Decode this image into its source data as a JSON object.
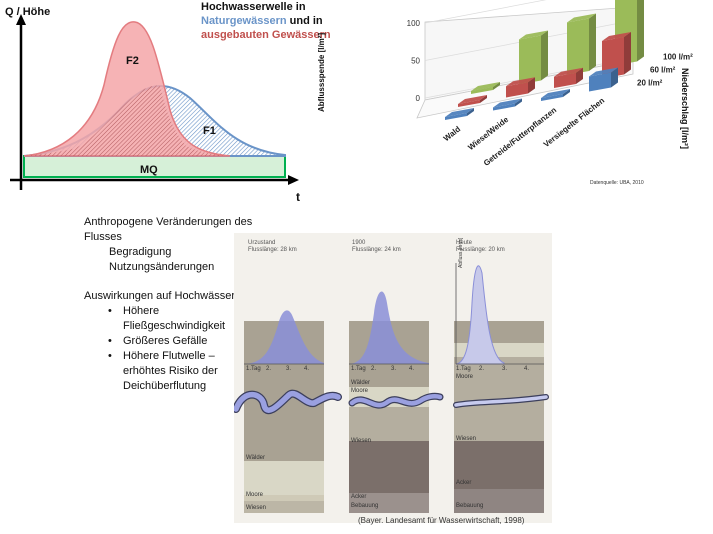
{
  "hydrograph": {
    "ylabel": "Q / Höhe",
    "xlabel": "t",
    "curve_f2": "F2",
    "curve_f1": "F1",
    "baseline": "MQ",
    "title_line1": "Hochwasserwelle in",
    "title_line2_a": "Naturgewässern",
    "title_line2_b": " und in",
    "title_line3": "ausgebauten Gewässern",
    "colors": {
      "natural": "#6a94c8",
      "built": "#c0504d",
      "baseline": "#00b050"
    }
  },
  "chart_data": {
    "type": "bar",
    "categories": [
      "Wald",
      "Wiese/Weide",
      "Getreide/Futterpflanzen",
      "Versiegelte Flächen"
    ],
    "series": [
      {
        "name": "20 l/m²",
        "values": [
          0,
          0,
          0,
          20
        ]
      },
      {
        "name": "60 l/m²",
        "values": [
          0,
          15,
          15,
          50
        ]
      },
      {
        "name": "100 l/m²",
        "values": [
          0,
          60,
          70,
          100
        ]
      }
    ],
    "ylabel": "Abflussspende [l/m²]",
    "depth_label": "Niederschlag [l/m²]",
    "yticks": [
      "0",
      "50",
      "100"
    ],
    "ylim": [
      0,
      100
    ],
    "source": "Datenquelle: UBA, 2010",
    "colors": {
      "20 l/m²": "#4f81bd",
      "60 l/m²": "#c0504d",
      "100 l/m²": "#9bbb59"
    }
  },
  "text_block": {
    "heading1": "Anthropogene Veränderungen des",
    "heading2": "Flusses",
    "changes": [
      "Begradigung",
      "Nutzungsänderungen"
    ],
    "effects_heading": "Auswirkungen auf Hochwässer",
    "effects": [
      [
        "Höhere",
        "Fließgeschwindigkeit"
      ],
      [
        "Größeres Gefälle"
      ],
      [
        "Höhere Flutwelle –",
        "erhöhtes Risiko der",
        "Deichüberflutung"
      ]
    ]
  },
  "panels": [
    {
      "state": "Urzustand",
      "length": "Flusslänge: 28 km",
      "days": [
        "1.Tag",
        "2.",
        "3.",
        "4."
      ],
      "labels": [
        "Wälder",
        "Moore",
        "Wiesen"
      ]
    },
    {
      "state": "1900",
      "length": "Flusslänge: 24 km",
      "days": [
        "1.Tag",
        "2.",
        "3.",
        "4."
      ],
      "labels": [
        "Wälder",
        "Moore",
        "Wiesen",
        "Acker",
        "Bebauung"
      ]
    },
    {
      "state": "Heute",
      "length": "Flusslänge: 20 km",
      "days": [
        "1.Tag",
        "2.",
        "3.",
        "4."
      ],
      "labels": [
        "Moore",
        "Wiesen",
        "Acker",
        "Bebauung"
      ],
      "axis": "Abfluss [m³/s]"
    }
  ],
  "caption": "(Bayer. Landesamt für Wasserwirtschaft, 1998)"
}
